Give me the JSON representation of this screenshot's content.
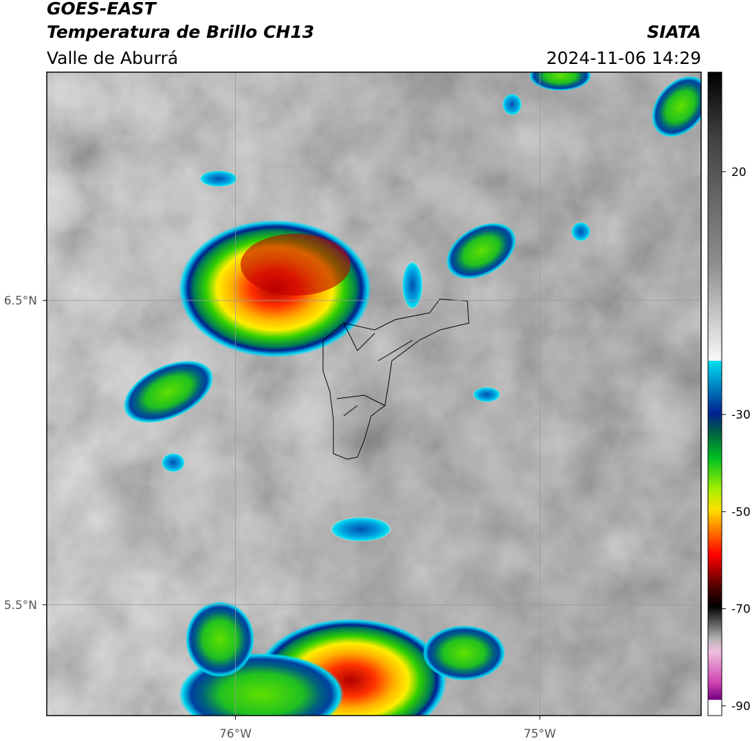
{
  "header": {
    "title": "GOES-EAST",
    "subtitle": "Temperatura de Brillo CH13",
    "region": "Valle de Aburrá",
    "source": "SIATA",
    "datetime": "2024-11-06 14:29"
  },
  "map": {
    "xlim": [
      -76.62,
      -74.47
    ],
    "ylim": [
      5.136,
      7.25
    ],
    "xticks": [
      {
        "value": -76,
        "label": "76°W"
      },
      {
        "value": -75,
        "label": "75°W"
      }
    ],
    "yticks": [
      {
        "value": 6.5,
        "label": "6.5°N"
      },
      {
        "value": 5.5,
        "label": "5.5°N"
      }
    ],
    "grid": true
  },
  "colorbar": {
    "lim": [
      -92,
      40.5
    ],
    "ticks": [
      20,
      -30,
      -50,
      -70,
      -90
    ]
  }
}
